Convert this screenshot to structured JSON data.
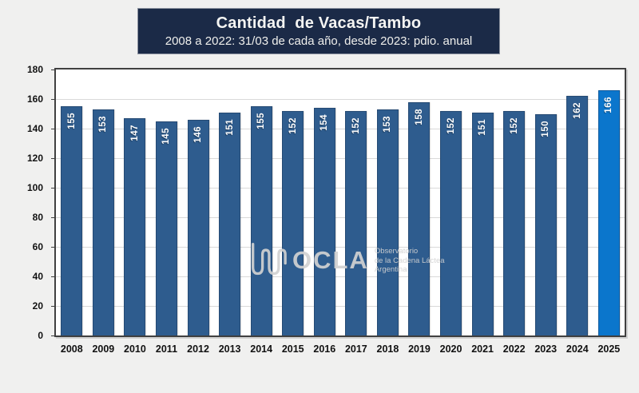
{
  "title": {
    "line1": "Cantidad  de Vacas/Tambo",
    "line2": "2008 a 2022: 31/03 de cada año, desde 2023: pdio. anual"
  },
  "watermark": {
    "logo_icon": "ocla-wave-icon",
    "logo_text": "OCLA",
    "tagline_line1": "Observatorio",
    "tagline_line2": "de la Cadena Láctea",
    "tagline_line3": "Argentina"
  },
  "colors": {
    "bar": "#2E5C8E",
    "bar_highlight": "#0B76CC",
    "title_bg": "#1B2A47",
    "background": "#F0F0EF",
    "gridline": "#D9D9D9",
    "axis_text": "#111111",
    "value_text": "#FFFFFF"
  },
  "chart_data": {
    "type": "bar",
    "title": "Cantidad de Vacas/Tambo",
    "subtitle": "2008 a 2022: 31/03 de cada año, desde 2023: pdio. anual",
    "categories": [
      "2008",
      "2009",
      "2010",
      "2011",
      "2012",
      "2013",
      "2014",
      "2015",
      "2016",
      "2017",
      "2018",
      "2019",
      "2020",
      "2021",
      "2022",
      "2023",
      "2024",
      "2025"
    ],
    "values": [
      155,
      153,
      147,
      145,
      146,
      151,
      155,
      152,
      154,
      152,
      153,
      158,
      152,
      151,
      152,
      150,
      162,
      166
    ],
    "xlabel": "",
    "ylabel": "",
    "ylim": [
      0,
      180
    ],
    "yticks": [
      0,
      20,
      40,
      60,
      80,
      100,
      120,
      140,
      160,
      180
    ],
    "grid": true,
    "legend": false,
    "highlight_last": true,
    "value_label_style": "inside-top-rotated-90ccw"
  }
}
